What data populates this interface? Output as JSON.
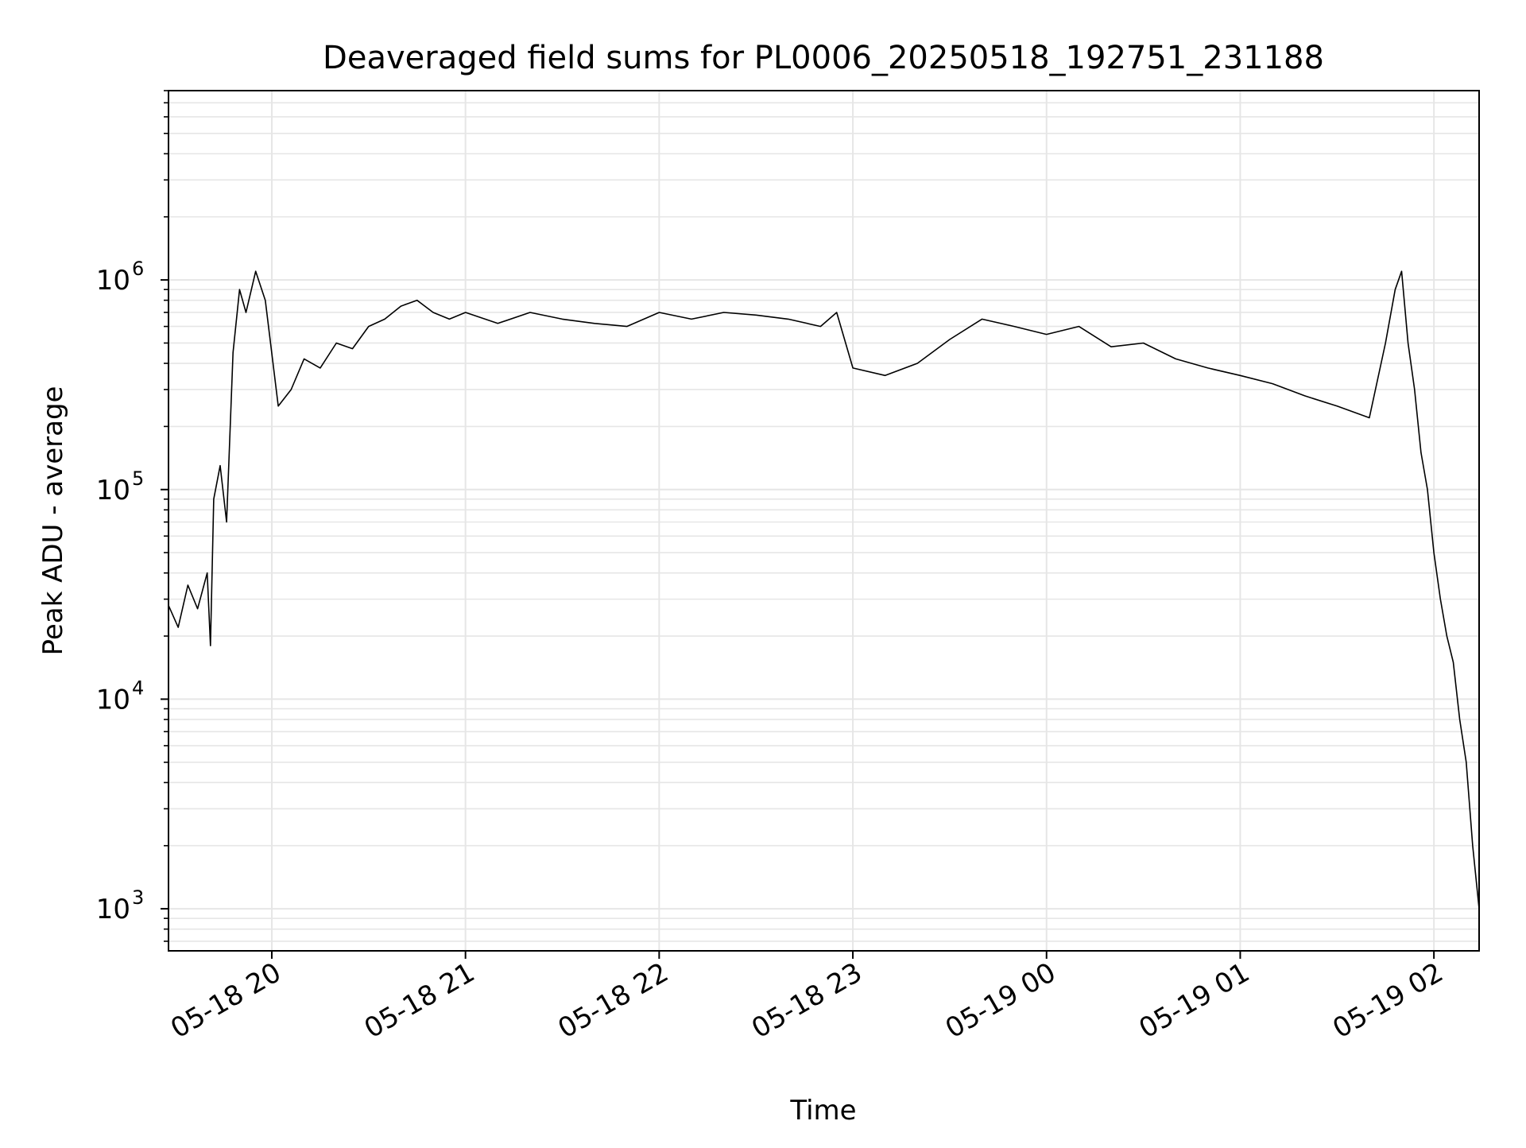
{
  "chart_data": {
    "type": "line",
    "title": "Deaveraged field sums for PL0006_20250518_192751_231188",
    "xlabel": "Time",
    "ylabel": "Peak ADU - average",
    "yscale": "log",
    "xlim": [
      "2025-05-18 19:28",
      "2025-05-19 02:14"
    ],
    "ylim": [
      630,
      8000000
    ],
    "grid": true,
    "line_color": "#000000",
    "grid_color": "#e6e6e6",
    "x_ticks": [
      {
        "t": "2025-05-18 20:00",
        "label": "05-18 20"
      },
      {
        "t": "2025-05-18 21:00",
        "label": "05-18 21"
      },
      {
        "t": "2025-05-18 22:00",
        "label": "05-18 22"
      },
      {
        "t": "2025-05-18 23:00",
        "label": "05-18 23"
      },
      {
        "t": "2025-05-19 00:00",
        "label": "05-19 00"
      },
      {
        "t": "2025-05-19 01:00",
        "label": "05-19 01"
      },
      {
        "t": "2025-05-19 02:00",
        "label": "05-19 02"
      }
    ],
    "y_ticks": [
      {
        "v": 1000,
        "base": "10",
        "exp": "3"
      },
      {
        "v": 10000,
        "base": "10",
        "exp": "4"
      },
      {
        "v": 100000,
        "base": "10",
        "exp": "5"
      },
      {
        "v": 1000000,
        "base": "10",
        "exp": "6"
      }
    ],
    "series": [
      {
        "x": [
          "2025-05-18 19:28",
          "2025-05-18 19:31",
          "2025-05-18 19:34",
          "2025-05-18 19:37",
          "2025-05-18 19:40",
          "2025-05-18 19:41",
          "2025-05-18 19:42",
          "2025-05-18 19:44",
          "2025-05-18 19:46",
          "2025-05-18 19:48",
          "2025-05-18 19:50",
          "2025-05-18 19:52",
          "2025-05-18 19:55",
          "2025-05-18 19:58",
          "2025-05-18 20:02",
          "2025-05-18 20:06",
          "2025-05-18 20:10",
          "2025-05-18 20:15",
          "2025-05-18 20:20",
          "2025-05-18 20:25",
          "2025-05-18 20:30",
          "2025-05-18 20:35",
          "2025-05-18 20:40",
          "2025-05-18 20:45",
          "2025-05-18 20:50",
          "2025-05-18 20:55",
          "2025-05-18 21:00",
          "2025-05-18 21:10",
          "2025-05-18 21:20",
          "2025-05-18 21:30",
          "2025-05-18 21:40",
          "2025-05-18 21:50",
          "2025-05-18 22:00",
          "2025-05-18 22:10",
          "2025-05-18 22:20",
          "2025-05-18 22:30",
          "2025-05-18 22:40",
          "2025-05-18 22:50",
          "2025-05-18 22:55",
          "2025-05-18 23:00",
          "2025-05-18 23:10",
          "2025-05-18 23:20",
          "2025-05-18 23:30",
          "2025-05-18 23:40",
          "2025-05-18 23:50",
          "2025-05-19 00:00",
          "2025-05-19 00:10",
          "2025-05-19 00:20",
          "2025-05-19 00:30",
          "2025-05-19 00:40",
          "2025-05-19 00:50",
          "2025-05-19 01:00",
          "2025-05-19 01:10",
          "2025-05-19 01:20",
          "2025-05-19 01:30",
          "2025-05-19 01:40",
          "2025-05-19 01:45",
          "2025-05-19 01:48",
          "2025-05-19 01:50",
          "2025-05-19 01:52",
          "2025-05-19 01:54",
          "2025-05-19 01:56",
          "2025-05-19 01:58",
          "2025-05-19 02:00",
          "2025-05-19 02:02",
          "2025-05-19 02:04",
          "2025-05-19 02:06",
          "2025-05-19 02:08",
          "2025-05-19 02:10",
          "2025-05-19 02:12",
          "2025-05-19 02:14"
        ],
        "y": [
          28000,
          22000,
          35000,
          27000,
          40000,
          18000,
          90000,
          130000,
          70000,
          450000,
          900000,
          700000,
          1100000,
          800000,
          250000,
          300000,
          420000,
          380000,
          500000,
          470000,
          600000,
          650000,
          750000,
          800000,
          700000,
          650000,
          700000,
          620000,
          700000,
          650000,
          620000,
          600000,
          700000,
          650000,
          700000,
          680000,
          650000,
          600000,
          700000,
          380000,
          350000,
          400000,
          520000,
          650000,
          600000,
          550000,
          600000,
          480000,
          500000,
          420000,
          380000,
          350000,
          320000,
          280000,
          250000,
          220000,
          500000,
          900000,
          1100000,
          500000,
          300000,
          150000,
          100000,
          50000,
          30000,
          20000,
          15000,
          8000,
          5000,
          2000,
          1000
        ]
      }
    ]
  }
}
